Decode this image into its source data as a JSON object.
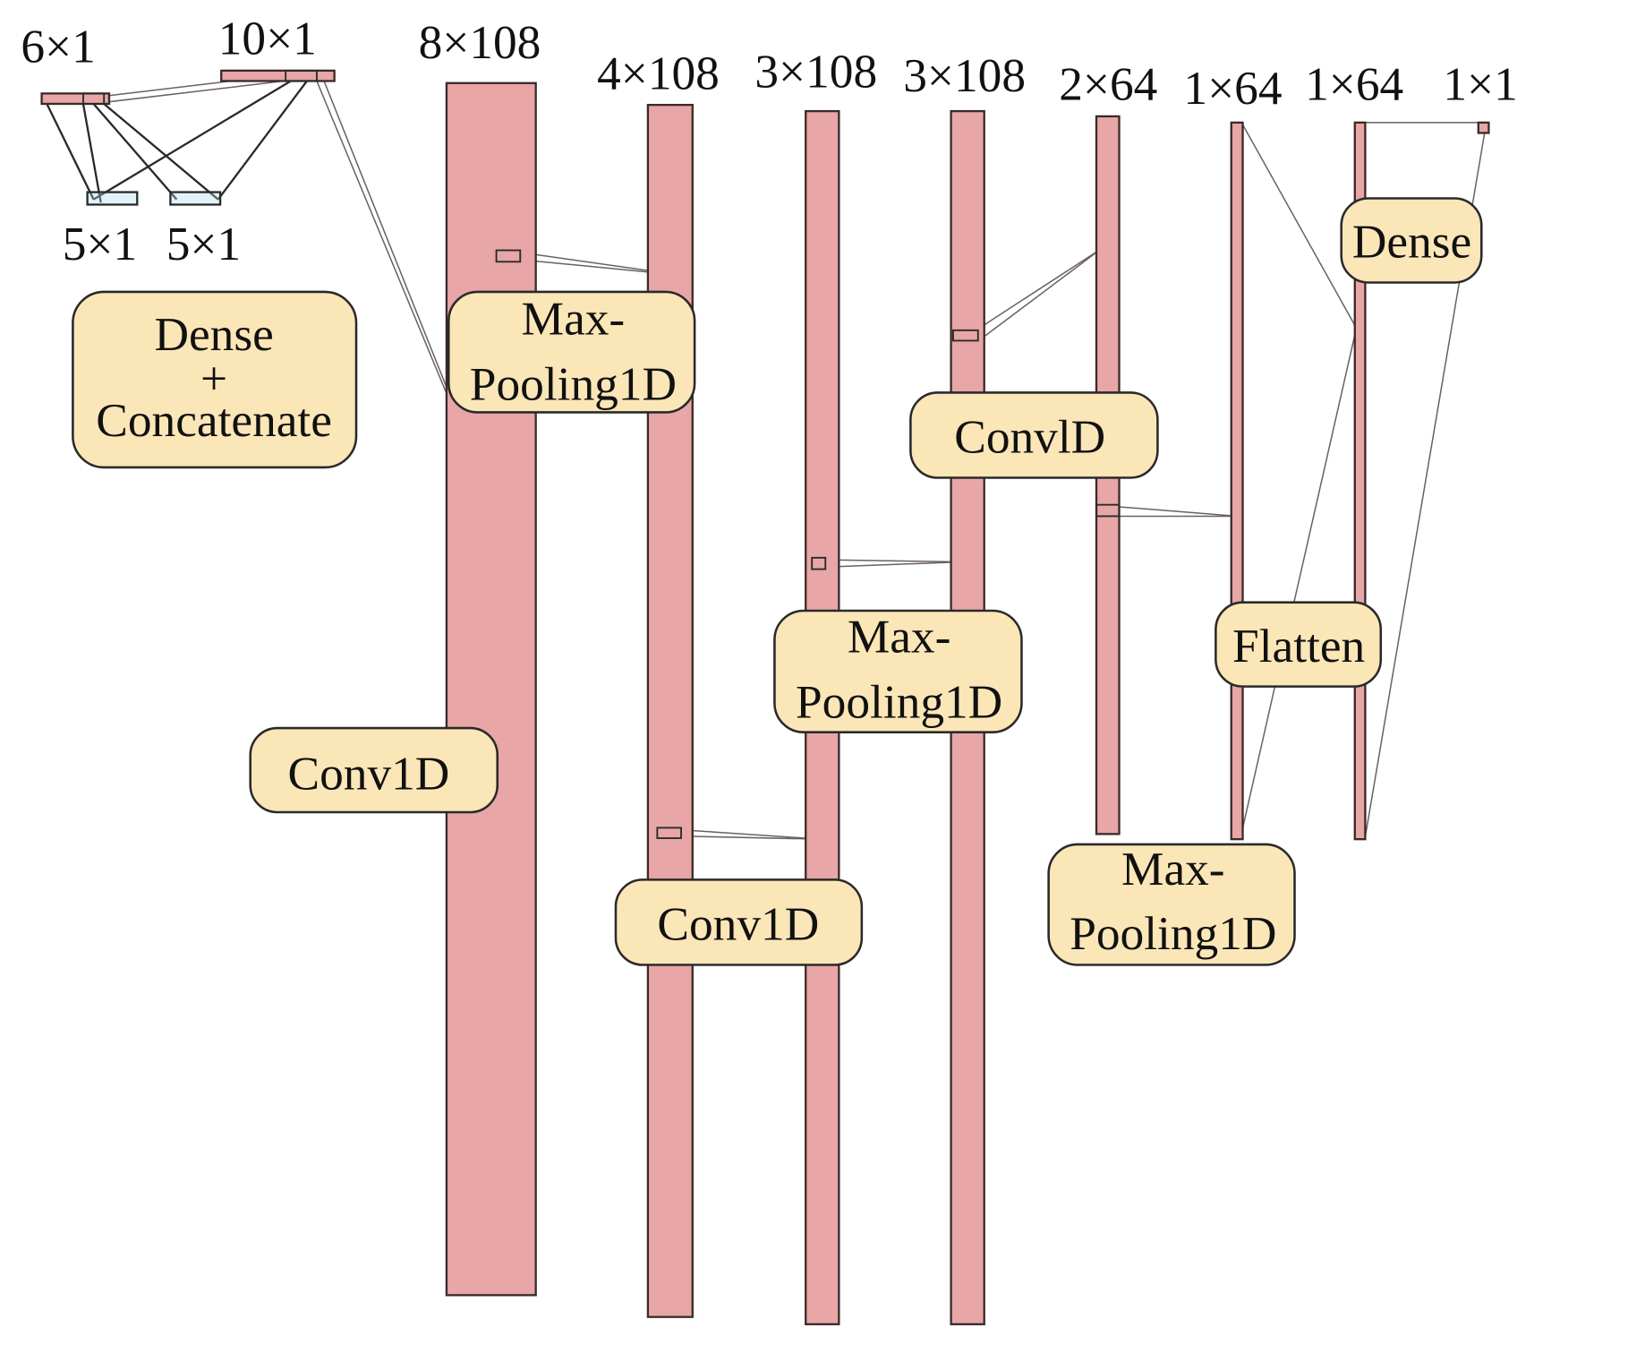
{
  "dimensions": {
    "input_a": "6×1",
    "input_b": "10×1",
    "dense_out_a": "5×1",
    "dense_out_b": "5×1",
    "conv1": "8×108",
    "pool1": "4×108",
    "conv2": "3×108",
    "pool2": "3×108",
    "conv3": "2×64",
    "pool3": "1×64",
    "flatten": "1×64",
    "output": "1×1"
  },
  "layers": {
    "dense_concat": [
      "Dense",
      "+",
      "Concatenate"
    ],
    "conv1": "Conv1D",
    "pool1": [
      "Max-",
      "Pooling1D"
    ],
    "conv2": "Conv1D",
    "pool2": [
      "Max-",
      "Pooling1D"
    ],
    "conv3": "ConvlD",
    "pool3": [
      "Max-",
      "Pooling1D"
    ],
    "flatten": "Flatten",
    "dense": "Dense"
  },
  "colors": {
    "tensor": "#e8a6a6",
    "layer_box": "#fbe6b8",
    "dense_output": "#a8dde8"
  }
}
